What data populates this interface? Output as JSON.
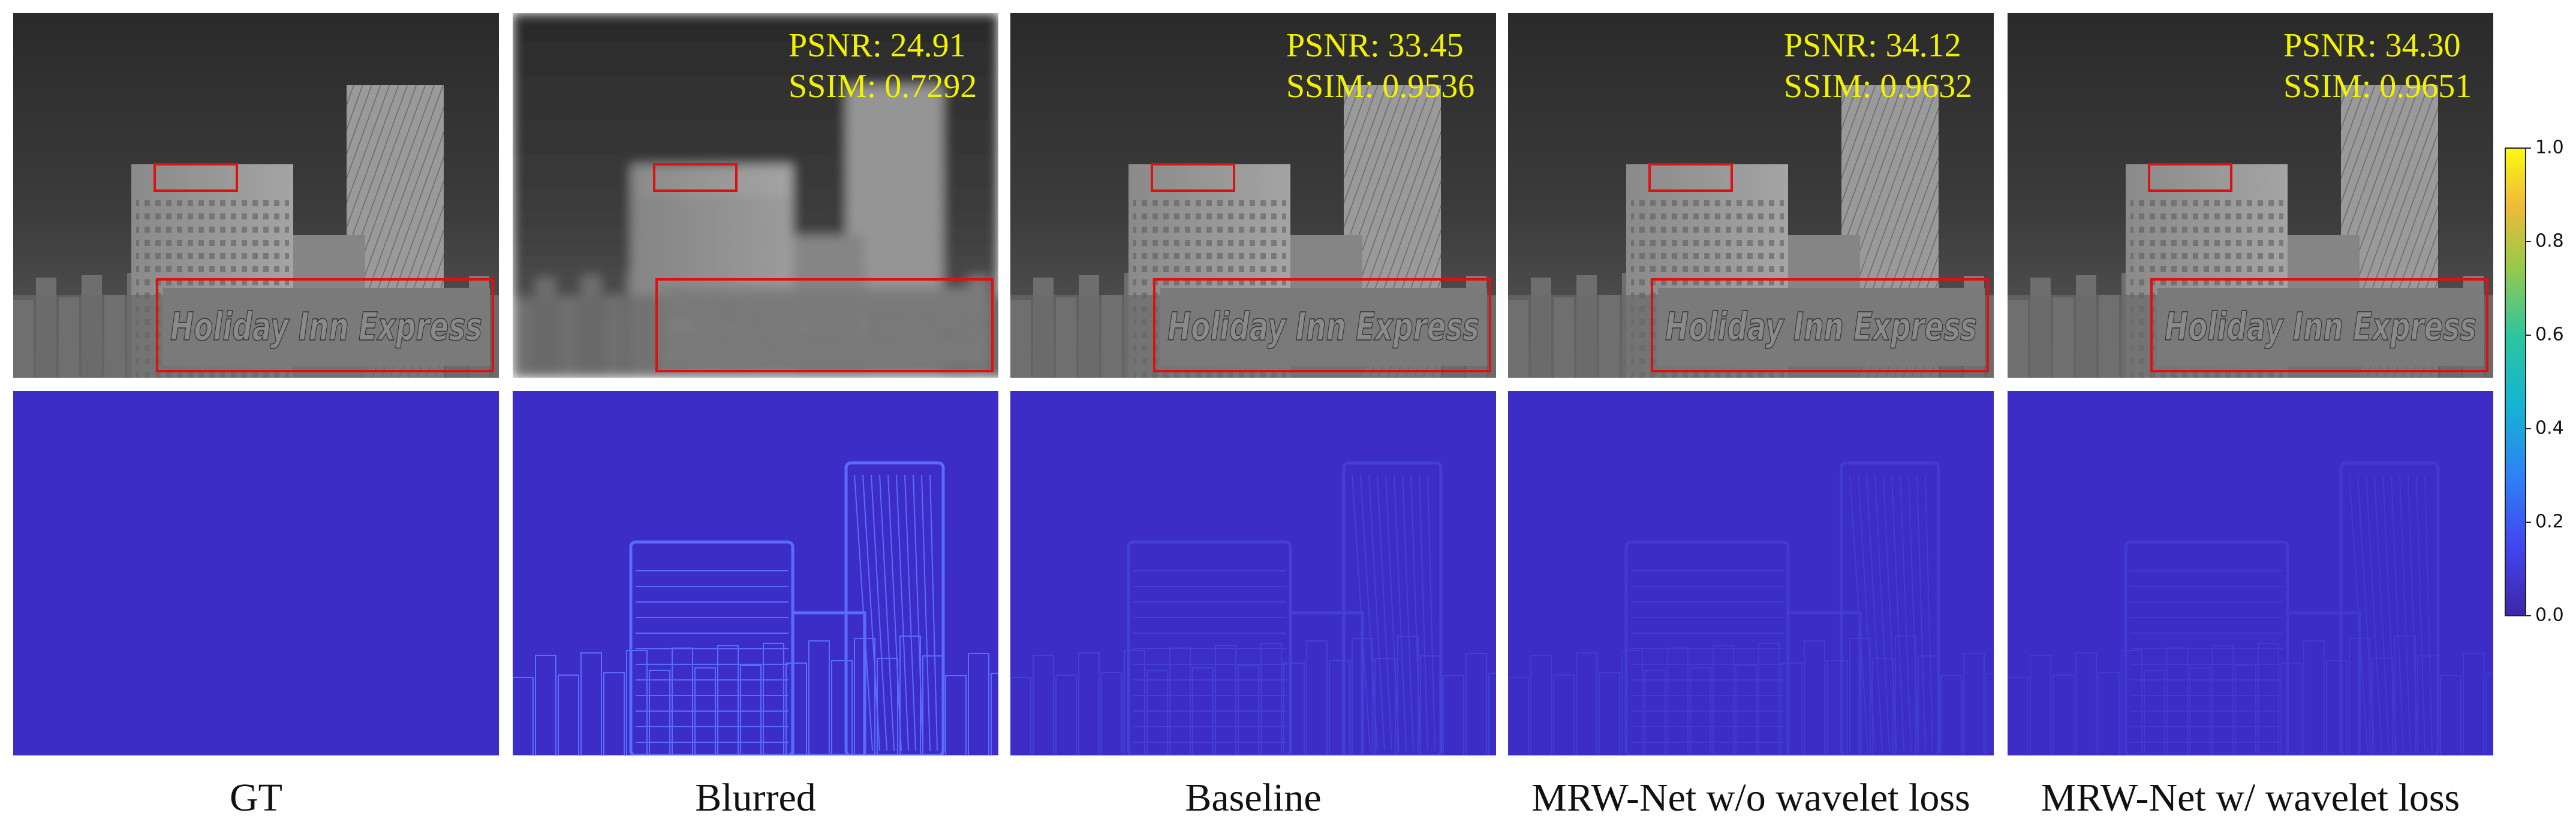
{
  "figure": {
    "panels": [
      {
        "label": "GT"
      },
      {
        "label": "Blurred",
        "psnr": "PSNR: 24.91",
        "ssim": "SSIM: 0.7292"
      },
      {
        "label": "Baseline",
        "psnr": "PSNR: 33.45",
        "ssim": "SSIM: 0.9536"
      },
      {
        "label": "MRW-Net w/o wavelet loss",
        "psnr": "PSNR: 34.12",
        "ssim": "SSIM: 0.9632"
      },
      {
        "label": "MRW-Net w/ wavelet loss",
        "psnr": "PSNR: 34.30",
        "ssim": "SSIM: 0.9651"
      }
    ],
    "sign_text": "Holiday Inn Express",
    "colorbar": {
      "range": [
        0,
        1
      ],
      "ticks": [
        {
          "value": 0,
          "label": "0.0"
        },
        {
          "value": 0.2,
          "label": "0.2"
        },
        {
          "value": 0.4,
          "label": "0.4"
        },
        {
          "value": 0.6,
          "label": "0.6"
        },
        {
          "value": 0.8,
          "label": "0.8"
        },
        {
          "value": 1,
          "label": "1.0"
        }
      ]
    }
  }
}
